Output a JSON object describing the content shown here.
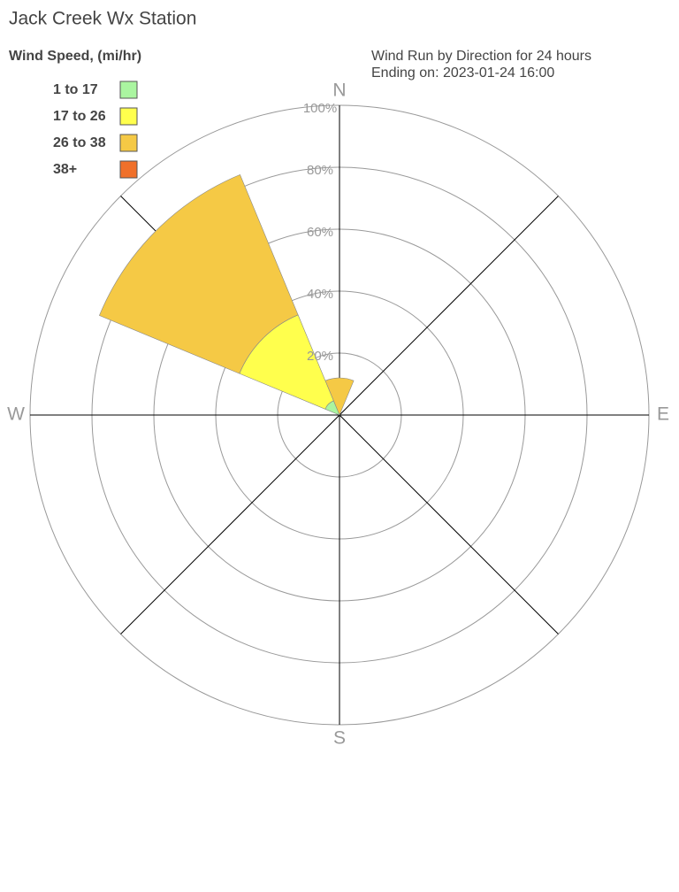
{
  "chart_data": {
    "type": "windrose",
    "title": "Jack Creek Wx Station",
    "legend_title": "Wind Speed, (mi/hr)",
    "subtitle": [
      "Wind Run by Direction for 24 hours",
      "Ending on: 2023-01-24 16:00"
    ],
    "categories": [
      "N",
      null,
      "E",
      null,
      "S",
      null,
      "W",
      null
    ],
    "series": [
      {
        "name": "1 to 17",
        "color": "#aaf5a0",
        "values": [
          0,
          0,
          0,
          0,
          0,
          0,
          0,
          5
        ]
      },
      {
        "name": "17 to 26",
        "color": "#ffff4d",
        "values": [
          0,
          0,
          0,
          0,
          0,
          0,
          0,
          30
        ]
      },
      {
        "name": "26 to 38",
        "color": "#f5c945",
        "values": [
          12,
          0,
          0,
          0,
          0,
          0,
          0,
          49
        ]
      },
      {
        "name": "38+",
        "color": "#f0702a",
        "values": [
          0,
          0,
          0,
          0,
          0,
          0,
          0,
          0
        ]
      }
    ],
    "rlim": [
      0,
      100
    ],
    "rticks": [
      {
        "value": 20,
        "label": "20%"
      },
      {
        "value": 40,
        "label": "40%"
      },
      {
        "value": 60,
        "label": "60%"
      },
      {
        "value": 80,
        "label": "80%"
      },
      {
        "value": 100,
        "label": "100%"
      }
    ],
    "grid": true
  }
}
